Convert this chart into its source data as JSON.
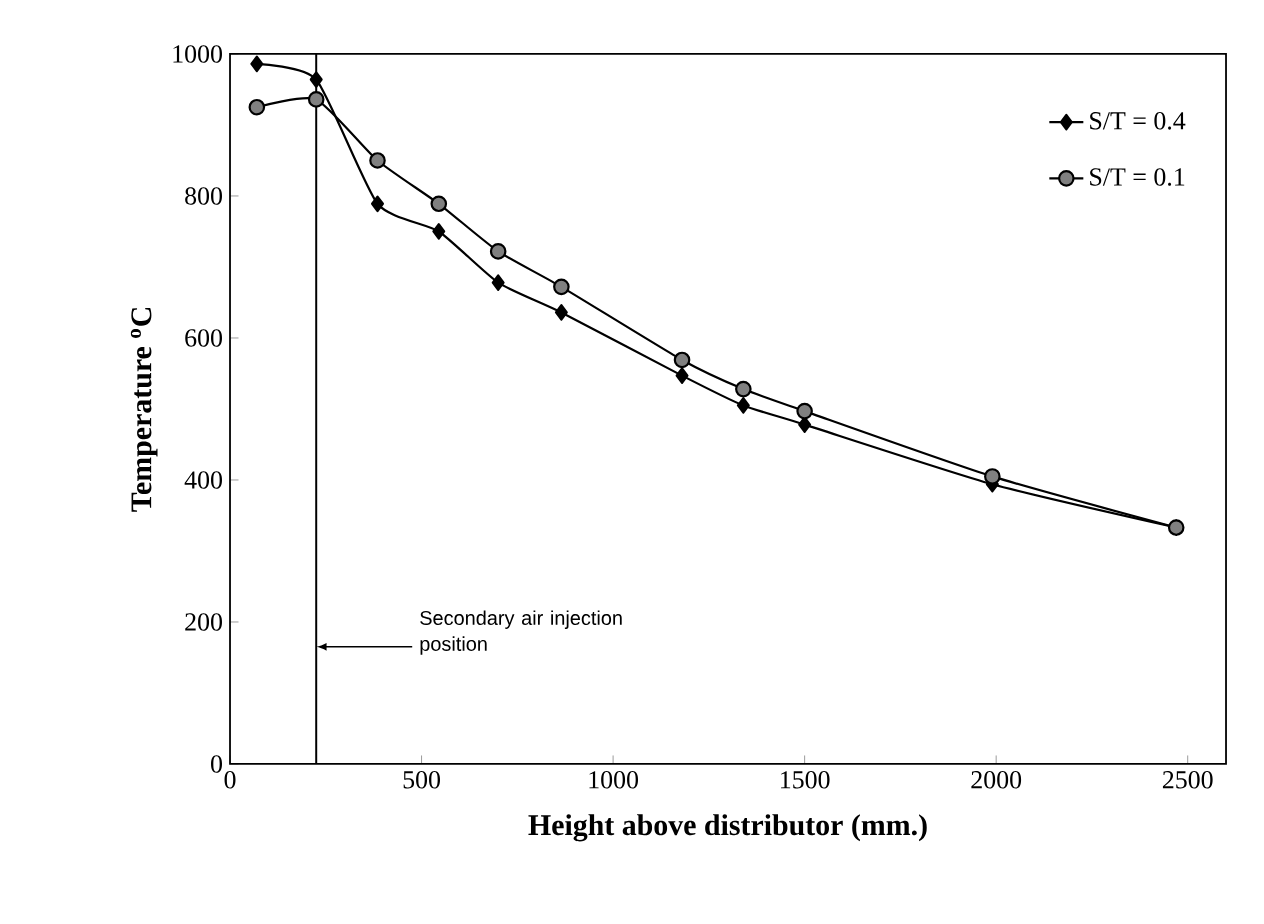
{
  "chart_data": {
    "type": "line",
    "xlabel": "Height above distributor (mm.)",
    "ylabel": "Temperature $^{o}$C",
    "x": [
      70,
      225,
      385,
      545,
      700,
      865,
      1180,
      1340,
      1500,
      1990,
      2470
    ],
    "series": [
      {
        "name": "S/T = 0.4",
        "color": "#000000",
        "marker": "diamond",
        "values": [
          986,
          964,
          789,
          750,
          678,
          636,
          547,
          505,
          478,
          394,
          333
        ]
      },
      {
        "name": "S/T = 0.1",
        "color": "#808080",
        "marker": "circle",
        "values": [
          925,
          936,
          850,
          789,
          722,
          672,
          569,
          528,
          497,
          405,
          333
        ]
      }
    ],
    "xlim": [
      0,
      2600
    ],
    "xticks": [
      0,
      500,
      1000,
      1500,
      2000,
      2500
    ],
    "ylim": [
      0,
      1000
    ],
    "yticks": [
      0,
      200,
      400,
      600,
      800,
      1000
    ],
    "ref_lines": [
      {
        "axis": "x",
        "value": 225,
        "color": "#000000"
      }
    ],
    "annotations": [
      {
        "text": "Secondary air injection position",
        "x": 225,
        "y": 165
      }
    ],
    "legend": "top right",
    "grid": false,
    "line_style": "solid"
  }
}
